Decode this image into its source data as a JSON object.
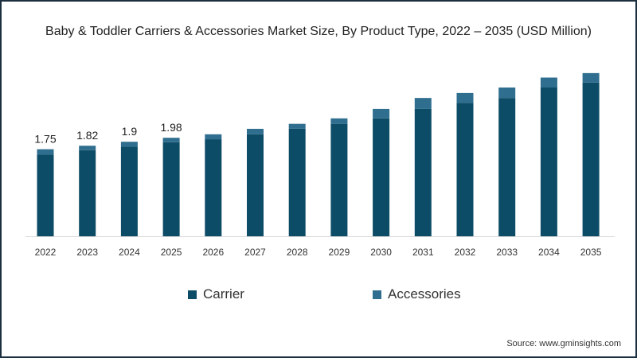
{
  "chart_data": {
    "type": "bar",
    "stacked": true,
    "title": "Baby & Toddler Carriers & Accessories Market Size, By Product Type, 2022 – 2035 (USD Million)",
    "xlabel": "",
    "ylabel": "",
    "ylim": [
      0,
      3.47
    ],
    "grid": false,
    "legend_position": "bottom",
    "categories": [
      "2022",
      "2023",
      "2024",
      "2025",
      "2026",
      "2027",
      "2028",
      "2029",
      "2030",
      "2031",
      "2032",
      "2033",
      "2034",
      "2035"
    ],
    "series": [
      {
        "name": "Carrier",
        "color": "#0d4c66",
        "values": [
          1.64,
          1.73,
          1.8,
          1.89,
          1.95,
          2.05,
          2.16,
          2.26,
          2.37,
          2.56,
          2.68,
          2.78,
          2.99,
          3.09
        ]
      },
      {
        "name": "Accessories",
        "color": "#2f6e8e",
        "values": [
          0.11,
          0.09,
          0.1,
          0.09,
          0.1,
          0.11,
          0.1,
          0.11,
          0.19,
          0.22,
          0.2,
          0.21,
          0.2,
          0.19
        ]
      }
    ],
    "data_labels": [
      {
        "category": "2022",
        "text": "1.75"
      },
      {
        "category": "2023",
        "text": "1.82"
      },
      {
        "category": "2024",
        "text": "1.9"
      },
      {
        "category": "2025",
        "text": "1.98"
      }
    ]
  },
  "source": "Source: www.gminsights.com"
}
